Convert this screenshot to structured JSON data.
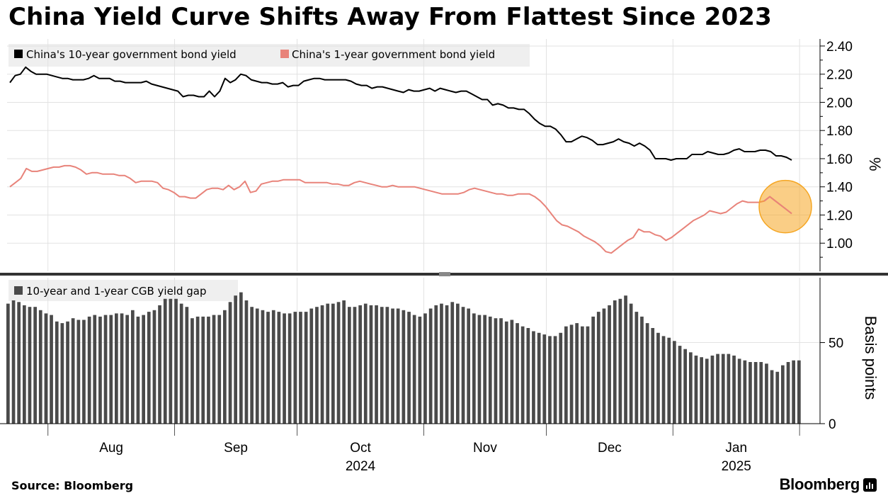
{
  "title": "China Yield Curve Shifts Away From Flattest Since 2023",
  "source": "Source: Bloomberg",
  "brand": "Bloomberg",
  "colors": {
    "ten_year": "#000000",
    "one_year": "#e8837a",
    "bars": "#4a4a4a",
    "highlight": "#f5a623"
  },
  "chart_data": [
    {
      "type": "line",
      "legend_placement": "top-left",
      "ylabel": "%",
      "ylim": [
        0.8,
        2.45
      ],
      "yticks": [
        "2.40",
        "2.20",
        "2.00",
        "1.80",
        "1.60",
        "1.40",
        "1.20",
        "1.00"
      ],
      "grid": true,
      "x_start": "2024-07-22",
      "x_end": "2025-02-06",
      "x_labels": [
        "Aug",
        "Sep",
        "Oct",
        "Nov",
        "Dec",
        "Jan"
      ],
      "year_labels": [
        "2024",
        "2025"
      ],
      "series": [
        {
          "name": "China's 10-year government bond yield",
          "values": [
            2.14,
            2.19,
            2.2,
            2.25,
            2.22,
            2.2,
            2.2,
            2.2,
            2.19,
            2.18,
            2.17,
            2.17,
            2.16,
            2.16,
            2.16,
            2.17,
            2.19,
            2.17,
            2.17,
            2.17,
            2.15,
            2.15,
            2.14,
            2.14,
            2.14,
            2.14,
            2.15,
            2.13,
            2.12,
            2.11,
            2.1,
            2.09,
            2.08,
            2.04,
            2.05,
            2.05,
            2.04,
            2.04,
            2.08,
            2.04,
            2.08,
            2.17,
            2.14,
            2.16,
            2.2,
            2.19,
            2.16,
            2.15,
            2.14,
            2.14,
            2.13,
            2.13,
            2.14,
            2.11,
            2.12,
            2.12,
            2.15,
            2.16,
            2.17,
            2.17,
            2.16,
            2.16,
            2.16,
            2.16,
            2.16,
            2.15,
            2.13,
            2.12,
            2.12,
            2.1,
            2.11,
            2.11,
            2.1,
            2.09,
            2.08,
            2.07,
            2.09,
            2.08,
            2.08,
            2.09,
            2.1,
            2.08,
            2.1,
            2.09,
            2.08,
            2.07,
            2.08,
            2.08,
            2.06,
            2.04,
            2.02,
            2.02,
            1.98,
            1.99,
            1.98,
            1.96,
            1.96,
            1.95,
            1.95,
            1.92,
            1.88,
            1.85,
            1.83,
            1.83,
            1.81,
            1.77,
            1.72,
            1.72,
            1.74,
            1.76,
            1.75,
            1.73,
            1.7,
            1.7,
            1.71,
            1.72,
            1.74,
            1.72,
            1.71,
            1.69,
            1.71,
            1.69,
            1.66,
            1.6,
            1.6,
            1.6,
            1.59,
            1.6,
            1.6,
            1.6,
            1.63,
            1.63,
            1.63,
            1.65,
            1.64,
            1.63,
            1.63,
            1.64,
            1.66,
            1.67,
            1.65,
            1.65,
            1.65,
            1.66,
            1.66,
            1.65,
            1.62,
            1.62,
            1.61,
            1.59
          ]
        },
        {
          "name": "China's 1-year government bond yield",
          "values": [
            1.4,
            1.43,
            1.46,
            1.53,
            1.51,
            1.51,
            1.52,
            1.53,
            1.54,
            1.54,
            1.55,
            1.55,
            1.54,
            1.52,
            1.49,
            1.5,
            1.5,
            1.49,
            1.49,
            1.49,
            1.48,
            1.48,
            1.46,
            1.43,
            1.44,
            1.44,
            1.44,
            1.43,
            1.39,
            1.38,
            1.36,
            1.33,
            1.33,
            1.32,
            1.32,
            1.35,
            1.38,
            1.39,
            1.39,
            1.38,
            1.41,
            1.38,
            1.4,
            1.44,
            1.36,
            1.37,
            1.42,
            1.43,
            1.44,
            1.44,
            1.45,
            1.45,
            1.45,
            1.45,
            1.43,
            1.43,
            1.43,
            1.43,
            1.43,
            1.42,
            1.42,
            1.41,
            1.41,
            1.43,
            1.44,
            1.43,
            1.42,
            1.41,
            1.4,
            1.4,
            1.41,
            1.4,
            1.4,
            1.4,
            1.4,
            1.39,
            1.38,
            1.37,
            1.36,
            1.35,
            1.35,
            1.35,
            1.35,
            1.36,
            1.38,
            1.39,
            1.38,
            1.37,
            1.36,
            1.35,
            1.35,
            1.34,
            1.34,
            1.35,
            1.35,
            1.35,
            1.33,
            1.3,
            1.26,
            1.21,
            1.16,
            1.13,
            1.12,
            1.1,
            1.08,
            1.05,
            1.03,
            1.01,
            0.98,
            0.94,
            0.93,
            0.96,
            0.99,
            1.02,
            1.04,
            1.1,
            1.08,
            1.08,
            1.06,
            1.05,
            1.02,
            1.04,
            1.07,
            1.1,
            1.13,
            1.16,
            1.18,
            1.2,
            1.23,
            1.22,
            1.21,
            1.22,
            1.25,
            1.28,
            1.3,
            1.29,
            1.29,
            1.29,
            1.3,
            1.33,
            1.3,
            1.27,
            1.24,
            1.21
          ]
        }
      ],
      "highlight_circle_around": "latest 1-year yield"
    },
    {
      "type": "bar",
      "legend_placement": "top-left",
      "ylabel": "Basis points",
      "ylim": [
        0,
        90
      ],
      "yticks": [
        "50",
        "0"
      ],
      "series": [
        {
          "name": "10-year and 1-year CGB yield gap",
          "values": [
            74,
            76,
            75,
            73,
            72,
            72,
            70,
            68,
            67,
            63,
            62,
            63,
            65,
            64,
            64,
            66,
            67,
            66,
            67,
            67,
            68,
            68,
            67,
            70,
            66,
            67,
            69,
            70,
            73,
            77,
            77,
            77,
            74,
            72,
            65,
            66,
            66,
            66,
            67,
            67,
            70,
            75,
            79,
            81,
            76,
            72,
            71,
            70,
            69,
            70,
            69,
            68,
            68,
            69,
            69,
            69,
            71,
            72,
            73,
            74,
            74,
            75,
            76,
            72,
            72,
            73,
            74,
            73,
            73,
            72,
            72,
            71,
            71,
            70,
            69,
            67,
            66,
            68,
            71,
            73,
            74,
            73,
            75,
            74,
            72,
            71,
            68,
            67,
            67,
            66,
            65,
            65,
            63,
            64,
            62,
            60,
            59,
            57,
            56,
            55,
            54,
            54,
            56,
            60,
            61,
            62,
            60,
            60,
            66,
            69,
            71,
            73,
            76,
            77,
            79,
            74,
            69,
            66,
            62,
            59,
            56,
            54,
            53,
            51,
            48,
            46,
            44,
            42,
            41,
            40,
            42,
            43,
            43,
            43,
            42,
            40,
            39,
            38,
            38,
            38,
            37,
            33,
            32,
            36,
            38,
            39,
            39
          ]
        }
      ]
    }
  ]
}
